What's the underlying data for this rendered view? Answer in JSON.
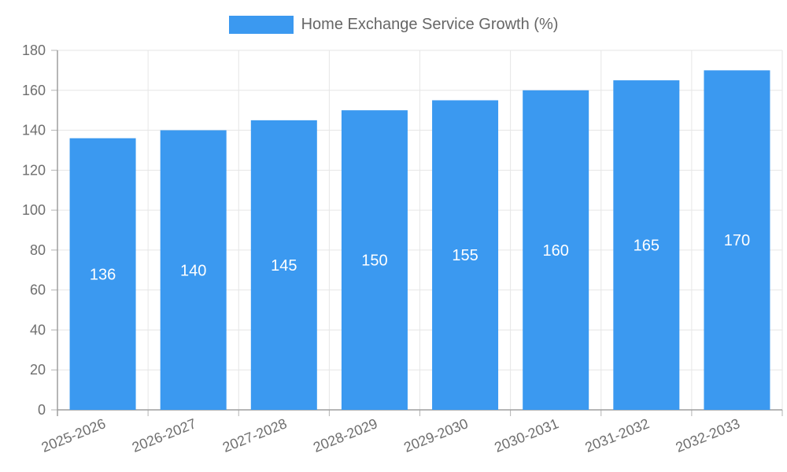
{
  "legend": {
    "label": "Home Exchange Service Growth (%)"
  },
  "colors": {
    "bar": "#3b99f0",
    "grid": "#e6e6e6",
    "axis_border": "#9e9e9e",
    "tick_mark": "#b3b3b3",
    "tick_label": "#6e6e6e",
    "legend_text": "#666666",
    "bar_label": "#ffffff",
    "background": "#ffffff"
  },
  "chart_data": {
    "type": "bar",
    "title": "Home Exchange Service Growth (%)",
    "categories": [
      "2025-2026",
      "2026-2027",
      "2027-2028",
      "2028-2029",
      "2029-2030",
      "2030-2031",
      "2031-2032",
      "2032-2033"
    ],
    "values": [
      136,
      140,
      145,
      150,
      155,
      160,
      165,
      170
    ],
    "bar_labels": [
      "136",
      "140",
      "145",
      "150",
      "155",
      "160",
      "165",
      "170"
    ],
    "xlabel": "",
    "ylabel": "",
    "ylim": [
      0,
      180
    ],
    "ytick_step": 20,
    "ytick_labels": [
      "0",
      "20",
      "40",
      "60",
      "80",
      "100",
      "120",
      "140",
      "160",
      "180"
    ],
    "grid": true,
    "legend_position": "top",
    "x_label_rotation_deg": -22
  }
}
